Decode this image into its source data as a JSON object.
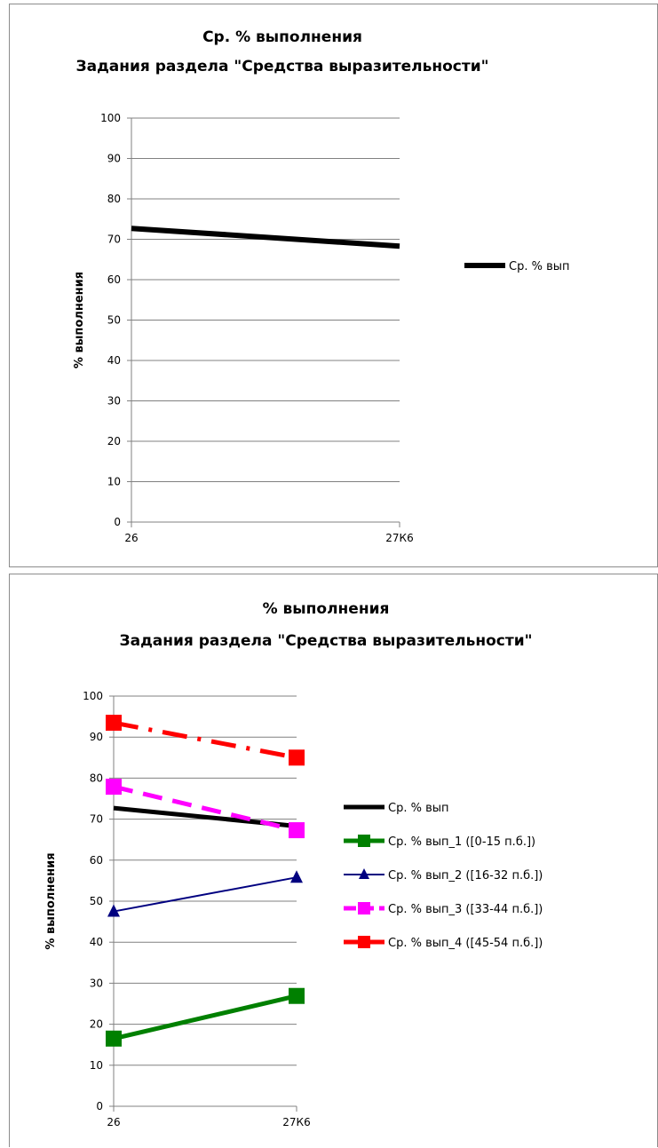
{
  "chart_data": [
    {
      "type": "line",
      "title": "Ср. % выполнения",
      "subtitle": "Задания раздела \"Средства выразительности\"",
      "ylabel": "% выполнения",
      "xlabel": "",
      "categories": [
        "26",
        "27К6"
      ],
      "ylim": [
        0,
        100
      ],
      "yticks": [
        "0",
        "10",
        "20",
        "30",
        "40",
        "50",
        "60",
        "70",
        "80",
        "90",
        "100"
      ],
      "grid": true,
      "legend_position": "right",
      "series": [
        {
          "name": "Ср. % вып",
          "values": [
            72.7,
            68.3
          ],
          "color": "#000000",
          "marker": "none",
          "dash": "solid",
          "width": 6
        }
      ]
    },
    {
      "type": "line",
      "title": "% выполнения",
      "subtitle": "Задания раздела \"Средства выразительности\"",
      "ylabel": "% выполнения",
      "xlabel": "",
      "categories": [
        "26",
        "27К6"
      ],
      "ylim": [
        0,
        100
      ],
      "yticks": [
        "0",
        "10",
        "20",
        "30",
        "40",
        "50",
        "60",
        "70",
        "80",
        "90",
        "100"
      ],
      "grid": true,
      "legend_position": "right",
      "series": [
        {
          "name": "Ср. % вып",
          "values": [
            72.7,
            68.3
          ],
          "color": "#000000",
          "marker": "none",
          "dash": "solid",
          "width": 5
        },
        {
          "name": "Ср. % вып_1 ([0-15 п.б.])",
          "values": [
            16.5,
            26.9
          ],
          "color": "#008000",
          "marker": "square",
          "dash": "solid",
          "width": 5
        },
        {
          "name": "Ср. % вып_2 ([16-32 п.б.])",
          "values": [
            47.5,
            55.8
          ],
          "color": "#000080",
          "marker": "triangle",
          "dash": "solid",
          "width": 2
        },
        {
          "name": "Ср. % вып_3 ([33-44 п.б.])",
          "values": [
            77.9,
            67.3
          ],
          "color": "#ff00ff",
          "marker": "square",
          "dash": "dash",
          "width": 5
        },
        {
          "name": "Ср. % вып_4 ([45-54 п.б.])",
          "values": [
            93.5,
            85.0
          ],
          "color": "#ff0000",
          "marker": "square",
          "dash": "dashdot",
          "width": 5
        }
      ]
    }
  ]
}
